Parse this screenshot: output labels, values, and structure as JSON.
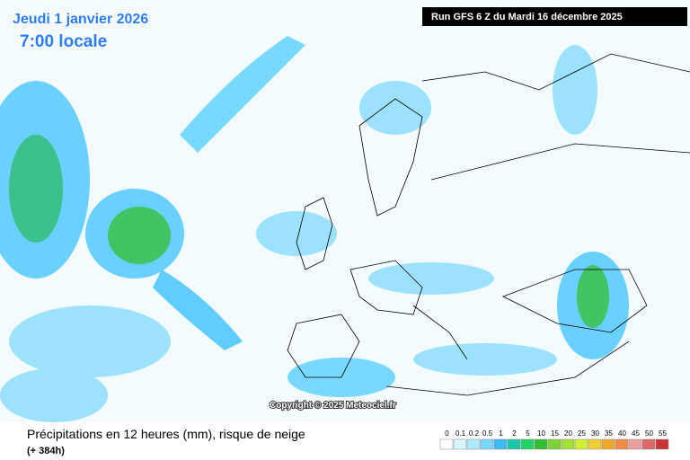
{
  "header": {
    "date": "Jeudi 1 janvier 2026",
    "time": "7:00 locale",
    "run": "Run GFS 6 Z du Mardi 16 décembre 2025"
  },
  "map": {
    "copyright": "Copyright © 2025 Meteociel.fr"
  },
  "footer": {
    "title": "Précipitations en 12 heures (mm), risque de neige",
    "lead": "(+ 384h)"
  },
  "legend": {
    "levels": [
      0,
      0.1,
      0.2,
      0.5,
      1,
      2,
      5,
      10,
      15,
      20,
      25,
      30,
      35,
      40,
      45,
      50,
      55
    ],
    "colors": [
      "#ffffff",
      "#d8f6ff",
      "#aeeaff",
      "#78d8ff",
      "#3cbcf4",
      "#16c8a8",
      "#1ed264",
      "#34be34",
      "#7cd234",
      "#a4e034",
      "#d2ee34",
      "#f0d034",
      "#f0a82c",
      "#f08a48",
      "#e8a0a0",
      "#dc6868",
      "#c83434"
    ]
  }
}
